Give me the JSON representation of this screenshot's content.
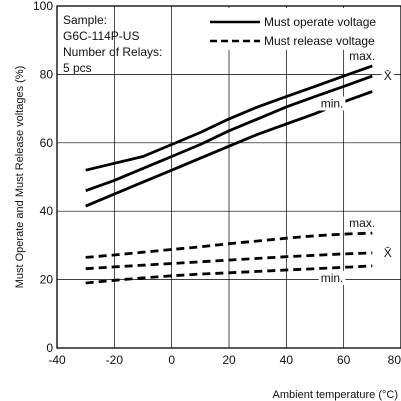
{
  "chart_data": {
    "type": "line",
    "xlabel": "Ambient temperature (°C)",
    "ylabel": "Must Operate and Must Release voltages (%)",
    "xlim": [
      -40,
      80
    ],
    "ylim": [
      0,
      100
    ],
    "x_ticks": [
      -40,
      -20,
      0,
      20,
      40,
      60,
      80
    ],
    "y_ticks": [
      0,
      20,
      40,
      60,
      80,
      100
    ],
    "grid": true,
    "legend_position": "top-right",
    "notes": [
      "Sample:",
      "G6C-114P-US",
      "Number of Relays:",
      "5 pcs"
    ],
    "legend": [
      {
        "label": "Must operate voltage",
        "style": "solid"
      },
      {
        "label": "Must release voltage",
        "style": "dashed"
      }
    ],
    "series": [
      {
        "group": "Must operate voltage",
        "label": "max.",
        "style": "solid",
        "x": [
          -30,
          -20,
          -10,
          0,
          10,
          20,
          30,
          40,
          50,
          60,
          70
        ],
        "y": [
          52,
          54,
          56,
          59.5,
          63,
          67,
          70.5,
          73.5,
          76.5,
          79.5,
          82.5
        ]
      },
      {
        "group": "Must operate voltage",
        "label": "X̄",
        "style": "solid",
        "x": [
          -30,
          -20,
          -10,
          0,
          10,
          20,
          30,
          40,
          50,
          60,
          70
        ],
        "y": [
          46,
          49,
          52.5,
          56,
          59.5,
          63.5,
          67,
          70.5,
          73.5,
          76.5,
          79.5
        ]
      },
      {
        "group": "Must operate voltage",
        "label": "min.",
        "style": "solid",
        "x": [
          -30,
          -20,
          -10,
          0,
          10,
          20,
          30,
          40,
          50,
          60,
          70
        ],
        "y": [
          41.5,
          45,
          48.5,
          52,
          55.5,
          59,
          62.5,
          65.5,
          68.5,
          72,
          75
        ]
      },
      {
        "group": "Must release voltage",
        "label": "max.",
        "style": "dashed",
        "x": [
          -30,
          -20,
          -10,
          0,
          10,
          20,
          30,
          40,
          50,
          60,
          70
        ],
        "y": [
          26.5,
          27.2,
          28,
          28.8,
          29.6,
          30.5,
          31.3,
          32.1,
          32.8,
          33.3,
          33.6
        ]
      },
      {
        "group": "Must release voltage",
        "label": "X̄",
        "style": "dashed",
        "x": [
          -30,
          -20,
          -10,
          0,
          10,
          20,
          30,
          40,
          50,
          60,
          70
        ],
        "y": [
          23.2,
          23.7,
          24.2,
          24.7,
          25.2,
          25.7,
          26.2,
          26.7,
          27.1,
          27.5,
          27.8
        ]
      },
      {
        "group": "Must release voltage",
        "label": "min.",
        "style": "dashed",
        "x": [
          -30,
          -20,
          -10,
          0,
          10,
          20,
          30,
          40,
          50,
          60,
          70
        ],
        "y": [
          19,
          19.8,
          20.5,
          21.1,
          21.6,
          22,
          22.4,
          22.8,
          23.2,
          23.6,
          24
        ]
      }
    ]
  }
}
